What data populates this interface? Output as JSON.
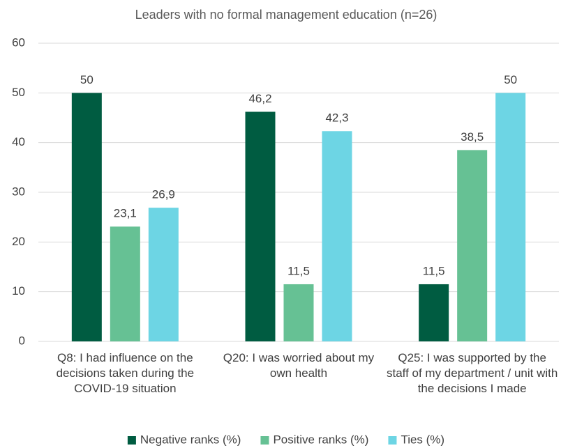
{
  "chart_data": {
    "type": "bar",
    "title": "Leaders with no formal management education (n=26)",
    "categories": [
      "Q8: I had influence on the decisions taken during the COVID-19 situation",
      "Q20: I was worried about my own health",
      "Q25: I was supported by the staff of my department / unit with the decisions I made"
    ],
    "series": [
      {
        "name": "Negative ranks (%)",
        "color": "#005c41",
        "values": [
          50,
          46.2,
          11.5
        ],
        "value_labels": [
          "50",
          "46,2",
          "11,5"
        ]
      },
      {
        "name": "Positive ranks (%)",
        "color": "#66c194",
        "values": [
          23.1,
          11.5,
          38.5
        ],
        "value_labels": [
          "23,1",
          "11,5",
          "38,5"
        ]
      },
      {
        "name": "Ties (%)",
        "color": "#6dd5e4",
        "values": [
          26.9,
          42.3,
          50
        ],
        "value_labels": [
          "26,9",
          "42,3",
          "50"
        ]
      }
    ],
    "ylim": [
      0,
      60
    ],
    "yticks": [
      0,
      10,
      20,
      30,
      40,
      50,
      60
    ],
    "grid": true,
    "legend": "bottom"
  }
}
